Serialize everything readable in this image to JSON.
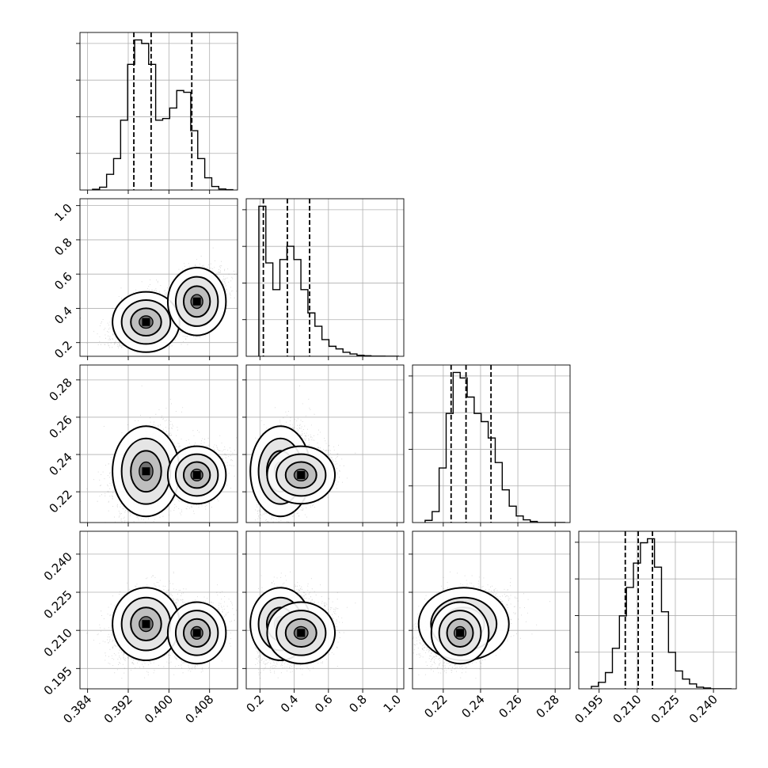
{
  "chart_data": {
    "type": "corner",
    "style": {
      "grid": true,
      "histogram_color": "#000000",
      "scatter_color": "#000000",
      "quantile_line_style": "dashed"
    },
    "params": [
      {
        "range": [
          0.3825,
          0.4135
        ],
        "ticks": [
          0.384,
          0.392,
          0.4,
          0.408
        ],
        "tick_labels": [
          "0.384",
          "0.392",
          "0.400",
          "0.408"
        ],
        "quantiles": [
          0.3931,
          0.3965,
          0.4045
        ],
        "hist": [
          0.2,
          0.8,
          4.5,
          9.0,
          20.0,
          36.0,
          43.0,
          42.0,
          36.0,
          20.0,
          20.5,
          23.5,
          28.5,
          28.0,
          17.0,
          9.0,
          3.5,
          1.0,
          0.3,
          0.1
        ]
      },
      {
        "range": [
          0.12,
          1.04
        ],
        "ticks": [
          0.2,
          0.4,
          0.6,
          0.8,
          1.0
        ],
        "tick_labels": [
          "0.2",
          "0.4",
          "0.6",
          "0.8",
          "1.0"
        ],
        "quantiles": [
          0.22,
          0.36,
          0.49
        ],
        "hist": [
          45.0,
          28.0,
          20.0,
          29.0,
          33.0,
          29.0,
          20.0,
          13.0,
          9.0,
          5.0,
          3.0,
          2.2,
          1.2,
          0.7,
          0.3,
          0.15,
          0.05,
          0.03,
          0.01,
          0.0
        ]
      },
      {
        "range": [
          0.2035,
          0.288
        ],
        "ticks": [
          0.22,
          0.24,
          0.26,
          0.28
        ],
        "tick_labels": [
          "0.22",
          "0.24",
          "0.26",
          "0.28"
        ],
        "quantiles": [
          0.2242,
          0.2322,
          0.2456
        ],
        "hist": [
          0.4,
          2.0,
          10.0,
          20.0,
          27.5,
          26.5,
          23.0,
          20.0,
          18.5,
          15.5,
          11.0,
          6.0,
          3.0,
          1.2,
          0.5,
          0.2,
          0.0,
          0.0,
          0.0,
          0.0
        ]
      },
      {
        "range": [
          0.187,
          0.249
        ],
        "ticks": [
          0.195,
          0.21,
          0.225,
          0.24
        ],
        "tick_labels": [
          "0.195",
          "0.210",
          "0.225",
          "0.240"
        ],
        "quantiles": [
          0.2053,
          0.2104,
          0.216
        ],
        "hist": [
          0.3,
          0.8,
          2.0,
          5.0,
          9.0,
          12.5,
          15.5,
          18.0,
          18.5,
          15.0,
          9.5,
          4.5,
          2.2,
          1.2,
          0.6,
          0.2,
          0.1,
          0.0,
          0.0,
          0.0
        ]
      }
    ],
    "clusters": [
      {
        "weight": 0.62,
        "mean": [
          0.3955,
          0.32,
          0.231,
          0.2125
        ],
        "sd": [
          0.003,
          0.08,
          0.011,
          0.0065
        ]
      },
      {
        "weight": 0.38,
        "mean": [
          0.4055,
          0.44,
          0.229,
          0.209
        ],
        "sd": [
          0.0026,
          0.09,
          0.007,
          0.0055
        ]
      }
    ]
  }
}
